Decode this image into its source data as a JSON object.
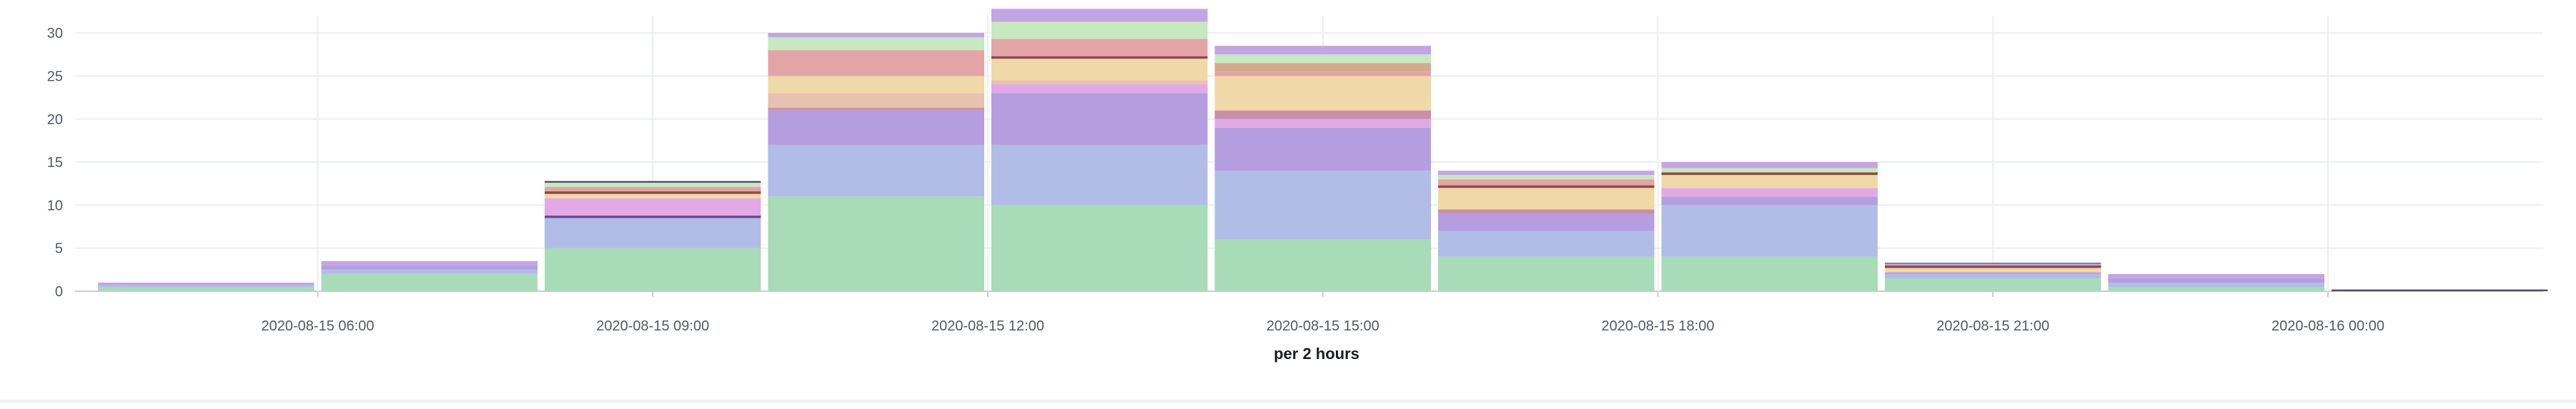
{
  "chart_data": {
    "type": "bar",
    "stacked": true,
    "xlabel": "per 2 hours",
    "ylabel": "",
    "ylim": [
      0,
      32
    ],
    "grid": true,
    "y_ticks": [
      0,
      5,
      10,
      15,
      20,
      25,
      30
    ],
    "x_tick_labels": [
      "2020-08-15 06:00",
      "2020-08-15 09:00",
      "2020-08-15 12:00",
      "2020-08-15 15:00",
      "2020-08-15 18:00",
      "2020-08-15 21:00",
      "2020-08-16 00:00"
    ],
    "categories": [
      "2020-08-15 04:00",
      "2020-08-15 06:00",
      "2020-08-15 08:00",
      "2020-08-15 10:00",
      "2020-08-15 12:00",
      "2020-08-15 14:00",
      "2020-08-15 16:00",
      "2020-08-15 18:00",
      "2020-08-15 20:00",
      "2020-08-15 22:00",
      "2020-08-16 00:00"
    ],
    "series": [
      {
        "color": "#a8dbb8",
        "values": [
          0.5,
          2,
          5,
          11,
          10,
          6,
          4,
          4,
          1.5,
          0.5,
          0
        ]
      },
      {
        "color": "#b1bde6",
        "values": [
          0.2,
          0.5,
          3.5,
          6,
          7,
          8,
          3,
          6,
          0.5,
          0.5,
          0
        ]
      },
      {
        "color": "#6a4c93",
        "values": [
          0,
          0,
          0.3,
          0,
          0,
          0,
          0,
          0,
          0,
          0,
          0
        ]
      },
      {
        "color": "#b59ee0",
        "values": [
          0,
          0.5,
          0,
          4,
          6,
          5,
          2,
          1,
          0.2,
          0.5,
          0
        ]
      },
      {
        "color": "#e2a9e6",
        "values": [
          0,
          0,
          2,
          0,
          1,
          1,
          0,
          1,
          0,
          0,
          0
        ]
      },
      {
        "color": "#c98fa8",
        "values": [
          0,
          0,
          0,
          0.3,
          0,
          1,
          0.5,
          0,
          0,
          0,
          0
        ]
      },
      {
        "color": "#e8c2b0",
        "values": [
          0,
          0,
          0,
          1.7,
          0.5,
          0,
          0,
          0,
          0,
          0,
          0
        ]
      },
      {
        "color": "#f0d8a8",
        "values": [
          0,
          0,
          0.5,
          2,
          2.5,
          4,
          2.5,
          1.5,
          0.5,
          0,
          0
        ]
      },
      {
        "color": "#8e4a4a",
        "values": [
          0,
          0,
          0.3,
          0,
          0.3,
          0,
          0.3,
          0.3,
          0.3,
          0,
          0
        ]
      },
      {
        "color": "#e3a4a6",
        "values": [
          0,
          0,
          0.5,
          3,
          2,
          0.5,
          0.7,
          0,
          0,
          0,
          0
        ]
      },
      {
        "color": "#d4aa8c",
        "values": [
          0,
          0,
          0,
          0,
          0,
          1,
          0,
          0,
          0,
          0,
          0
        ]
      },
      {
        "color": "#c8e8c0",
        "values": [
          0,
          0,
          0.5,
          1.5,
          2,
          1,
          0.5,
          0.5,
          0,
          0,
          0
        ]
      },
      {
        "color": "#c3a4e4",
        "values": [
          0.3,
          0.5,
          0,
          0.5,
          1.5,
          1,
          0.5,
          0.7,
          0.2,
          0.5,
          0
        ]
      },
      {
        "color": "#5a4a6e",
        "values": [
          0,
          0,
          0.2,
          0,
          0,
          0,
          0,
          0,
          0.1,
          0,
          0.2
        ]
      }
    ]
  }
}
